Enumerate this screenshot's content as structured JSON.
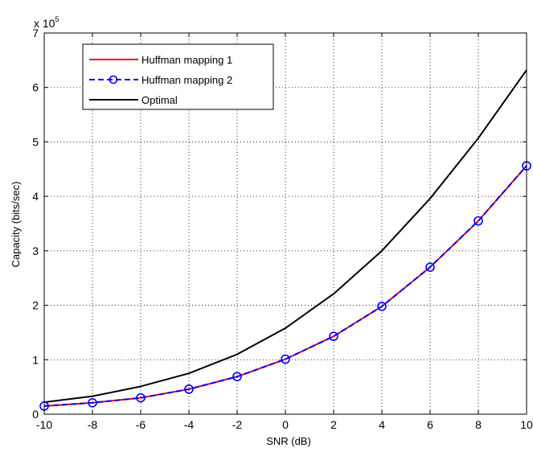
{
  "chart_data": {
    "type": "line",
    "xlabel": "SNR (dB)",
    "ylabel": "Capacity (bits/sec)",
    "y_multiplier_label": "x 10",
    "y_multiplier_exponent": "5",
    "xlim": [
      -10,
      10
    ],
    "ylim": [
      0,
      7
    ],
    "x_ticks": [
      "-10",
      "-8",
      "-6",
      "-4",
      "-2",
      "0",
      "2",
      "4",
      "6",
      "8",
      "10"
    ],
    "y_ticks": [
      "0",
      "1",
      "2",
      "3",
      "4",
      "5",
      "6",
      "7"
    ],
    "grid": true,
    "legend_position": "top-left",
    "x": [
      -10,
      -8,
      -6,
      -4,
      -2,
      0,
      2,
      4,
      6,
      8,
      10
    ],
    "series": [
      {
        "name": "Huffman mapping 1",
        "values": [
          0.15,
          0.21,
          0.3,
          0.46,
          0.69,
          1.01,
          1.43,
          1.98,
          2.7,
          3.55,
          4.56
        ],
        "color": "#ff0000",
        "style": "solid",
        "marker": "none"
      },
      {
        "name": "Huffman mapping 2",
        "values": [
          0.15,
          0.21,
          0.3,
          0.46,
          0.69,
          1.01,
          1.43,
          1.98,
          2.7,
          3.55,
          4.56
        ],
        "color": "#0000ff",
        "style": "dashed",
        "marker": "circle"
      },
      {
        "name": "Optimal",
        "values": [
          0.22,
          0.33,
          0.51,
          0.75,
          1.1,
          1.58,
          2.21,
          3.0,
          3.96,
          5.07,
          6.32
        ],
        "color": "#000000",
        "style": "solid",
        "marker": "none"
      }
    ]
  }
}
